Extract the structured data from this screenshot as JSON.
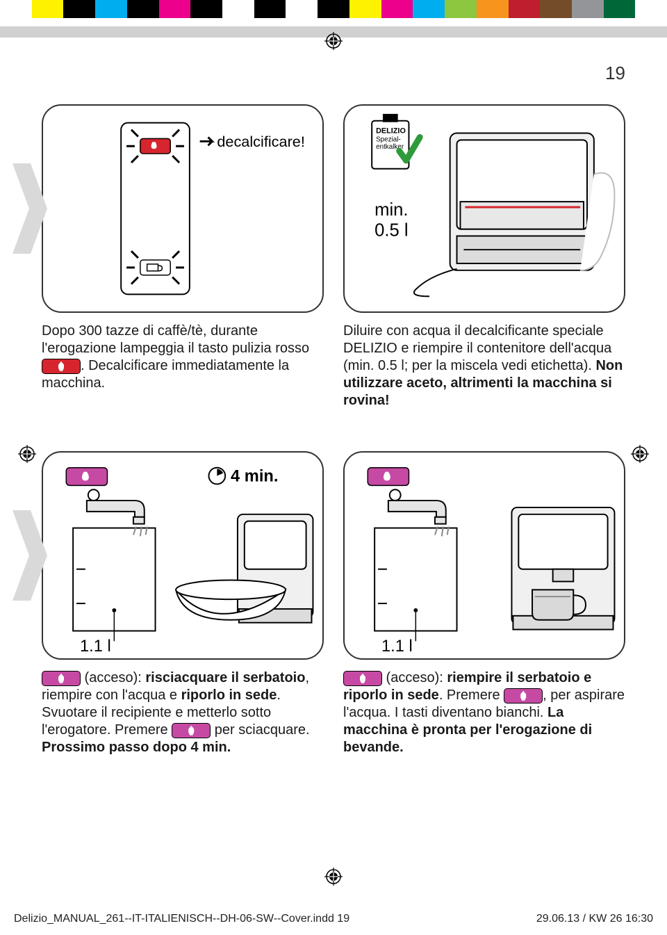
{
  "page_number": "19",
  "color_bar": [
    "#ffffff",
    "#fff200",
    "#000000",
    "#00aeef",
    "#000000",
    "#ec008c",
    "#000000",
    "#ffffff",
    "#000000",
    "#ffffff",
    "#000000",
    "#fff200",
    "#ec008c",
    "#00aeef",
    "#8dc63f",
    "#f7941d",
    "#be1e2d",
    "#754c29",
    "#939598",
    "#006838",
    "#ffffff"
  ],
  "step1": {
    "decalc_label": "decalcificare!",
    "caption_a": "Dopo 300 tazze di caffè/tè, durante l'erogazione lampeggia il tasto pulizia rosso ",
    "caption_b": ". Decalcificare immediatamente la macchina."
  },
  "step2": {
    "product_label_1": "DELIZIO",
    "product_label_2": "Spezial-",
    "product_label_3": "entkalker",
    "min_label": "min.",
    "volume": "0.5 l",
    "caption_a": "Diluire con acqua il decalcificante speciale DELIZIO e riempire il contenitore dell'acqua (min. 0.5 l; per la miscela vedi etichetta). ",
    "caption_b": "Non utilizzare aceto, altrimenti la macchina si rovina!"
  },
  "step3": {
    "timer": "4 min.",
    "volume": "1.1 l",
    "caption_a": " (acceso): ",
    "caption_b": "risciacquare il serbatoio",
    "caption_c": ", riempire con l'acqua e ",
    "caption_d": "riporlo in sede",
    "caption_e": ". Svuotare il recipiente e metterlo sotto l'erogatore. Premere ",
    "caption_f": " per sciacquare. ",
    "caption_g": "Prossimo passo dopo 4 min."
  },
  "step4": {
    "volume": "1.1 l",
    "caption_a": " (acceso): ",
    "caption_b": "riempire il serbatoio e riporlo in sede",
    "caption_c": ". Premere ",
    "caption_d": ", per aspirare l'acqua. I tasti diventano bianchi. ",
    "caption_e": "La macchina è pronta per l'erogazione di bevande."
  },
  "footer": {
    "file": "Delizio_MANUAL_261--IT-ITALIENISCH--DH-06-SW--Cover.indd   19",
    "date": "29.06.13 / KW 26   16:30"
  },
  "colors": {
    "pink": "#c64aa4",
    "red": "#d6252e",
    "border": "#333333"
  }
}
